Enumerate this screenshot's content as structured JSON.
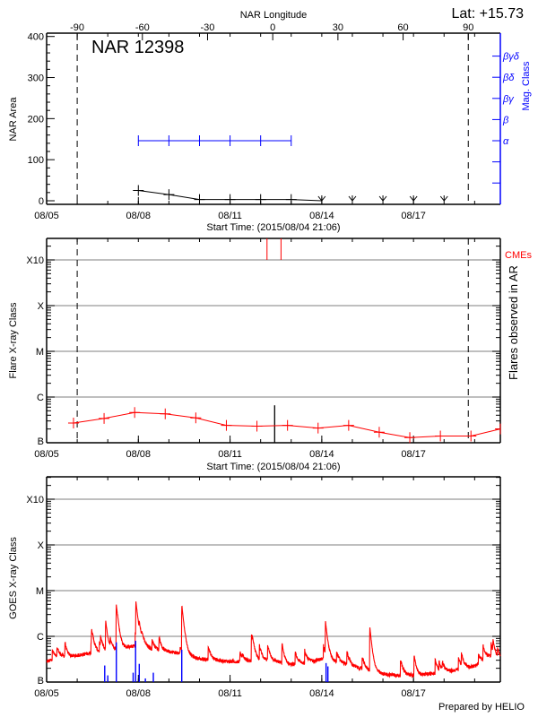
{
  "footer": {
    "credit": "Prepared by HELIO"
  },
  "chart_data": [
    {
      "type": "line",
      "title": "NAR 12398",
      "top_right_label": "Lat: +15.73",
      "xlabel": "Start Time: (2015/08/04 21:06)",
      "xlim": [
        "08/05 00:00",
        "08/19 20:10"
      ],
      "xticks": [
        "08/05",
        "08/08",
        "08/11",
        "08/14",
        "08/17"
      ],
      "top_axis": {
        "label": "NAR Longitude",
        "ticks": [
          -90,
          -60,
          -30,
          0,
          30,
          60,
          90
        ],
        "dates_at_limb": {
          "-90": "08/06 00:00",
          "90": "08/18 19:00"
        }
      },
      "ylabel": "NAR Area",
      "ylim": [
        -8,
        410
      ],
      "yticks": [
        0,
        100,
        200,
        300,
        400
      ],
      "right_axis": {
        "label": "Mag. Class",
        "ticks": [
          "α",
          "β",
          "βγ",
          "βδ",
          "βγδ"
        ],
        "color": "#0000ff"
      },
      "limb_lines": [
        "08/06 00:00",
        "08/18 19:00"
      ],
      "series": [
        {
          "kind": "area",
          "color": "#000000",
          "x": [
            "08/08 00:00",
            "08/09 00:00",
            "08/10 00:00",
            "08/11 00:00",
            "08/12 00:00",
            "08/13 00:00"
          ],
          "values": [
            25,
            15,
            3,
            3,
            3,
            3
          ]
        },
        {
          "kind": "area-zero-markers",
          "color": "#000000",
          "x": [
            "08/14 00:00",
            "08/15 00:00",
            "08/16 00:00",
            "08/17 00:00",
            "08/18 00:00"
          ],
          "values": [
            0,
            0,
            0,
            0,
            0
          ]
        },
        {
          "kind": "mag-class",
          "color": "#0000ff",
          "x": [
            "08/08 00:00",
            "08/09 00:00",
            "08/10 00:00",
            "08/11 00:00",
            "08/12 00:00",
            "08/13 00:00"
          ],
          "values": [
            "α",
            "α",
            "α",
            "α",
            "α",
            "α"
          ]
        }
      ]
    },
    {
      "type": "line",
      "xlabel": "Start Time: (2015/08/04 21:06)",
      "xlim": [
        "08/05 00:00",
        "08/19 20:10"
      ],
      "xticks": [
        "08/05",
        "08/08",
        "08/11",
        "08/14",
        "08/17"
      ],
      "ylabel": "Flare X-ray Class",
      "right_label": "Flares observed in AR",
      "yscale": "log",
      "yticks": [
        "B",
        "C",
        "M",
        "X",
        "X10"
      ],
      "grid": true,
      "limb_lines": [
        "08/06 00:00",
        "08/18 19:00"
      ],
      "cme_label": "CMEs",
      "cmes": [
        "08/12 05:00",
        "08/12 16:00"
      ],
      "flares": [
        {
          "x": "08/12 11:00",
          "class": "B6.6"
        }
      ],
      "series": [
        {
          "kind": "background",
          "color": "#ff0000",
          "x": [
            "08/05 21:06",
            "08/06 21:06",
            "08/07 21:06",
            "08/08 21:06",
            "08/09 21:06",
            "08/10 21:06",
            "08/11 21:06",
            "08/12 21:06",
            "08/13 21:06",
            "08/14 21:06",
            "08/15 21:06",
            "08/16 21:06",
            "08/17 21:06",
            "08/18 21:06",
            "08/19 21:06"
          ],
          "values": [
            "B2.7",
            "B3.4",
            "B4.6",
            "B4.3",
            "B3.5",
            "B2.4",
            "B2.3",
            "B2.4",
            "B2.1",
            "B2.4",
            "B1.7",
            "B1.3",
            "B1.4",
            "B1.4",
            "B2.0"
          ]
        }
      ]
    },
    {
      "type": "line",
      "xlim": [
        "08/05 00:00",
        "08/19 20:10"
      ],
      "xticks": [
        "08/05",
        "08/08",
        "08/11",
        "08/14",
        "08/17"
      ],
      "ylabel": "GOES X-ray Class",
      "yscale": "log",
      "yticks": [
        "B",
        "C",
        "M",
        "X",
        "X10"
      ],
      "grid": true,
      "series": [
        {
          "kind": "goes-background",
          "color": "#ff0000",
          "x": [
            "08/05 00:00",
            "08/05 12:00",
            "08/06 00:00",
            "08/06 12:00",
            "08/07 00:00",
            "08/07 12:00",
            "08/08 00:00",
            "08/08 12:00",
            "08/09 00:00",
            "08/09 12:00",
            "08/10 00:00",
            "08/10 12:00",
            "08/11 00:00",
            "08/11 12:00",
            "08/12 00:00",
            "08/12 12:00",
            "08/13 00:00",
            "08/13 12:00",
            "08/14 00:00",
            "08/14 12:00",
            "08/15 00:00",
            "08/15 12:00",
            "08/16 00:00",
            "08/16 12:00",
            "08/17 00:00",
            "08/17 12:00",
            "08/18 00:00",
            "08/18 12:00",
            "08/19 00:00",
            "08/19 12:00",
            "08/19 22:00"
          ],
          "values": [
            "B2.8",
            "B3.5",
            "B3.8",
            "B4.4",
            "B4.4",
            "B5.5",
            "B6.4",
            "B5.1",
            "B4.7",
            "B4.0",
            "B3.2",
            "B3.0",
            "B2.8",
            "B2.8",
            "B3.0",
            "B2.8",
            "B2.4",
            "B2.6",
            "B3.2",
            "B2.8",
            "B2.2",
            "B1.8",
            "B1.5",
            "B1.4",
            "B1.4",
            "B1.5",
            "B1.6",
            "B1.9",
            "B2.2",
            "B3.5",
            "B3.0"
          ]
        },
        {
          "kind": "goes-peaks",
          "color": "#ff0000",
          "x": [
            "08/05 14:24",
            "08/06 11:17",
            "08/06 22:19",
            "08/07 06:43",
            "08/07 22:05",
            "08/08 16:19",
            "08/09 10:05",
            "08/11 16:48",
            "08/12 16:48",
            "08/14 02:53",
            "08/15 13:41",
            "08/17 00:29",
            "08/19 14:24"
          ],
          "values": [
            "B7.4",
            "C1.0",
            "C2.2",
            "C4.9",
            "C5.5",
            "C1.0",
            "C4.5",
            "C1.1",
            "B7.2",
            "C2.0",
            "C1.6",
            "B4.0",
            "B6.9"
          ]
        },
        {
          "kind": "events",
          "color": "#0000ff",
          "x": [
            "08/06 21:36",
            "08/07 00:00",
            "08/07 06:43",
            "08/07 19:55",
            "08/07 21:50",
            "08/08 00:43",
            "08/08 05:31",
            "08/08 11:46",
            "08/09 10:05",
            "08/14 03:22",
            "08/14 04:48"
          ],
          "values": [
            "B2.3",
            "B1.4",
            "B7.4",
            "B1.6",
            "B8.0",
            "B2.5",
            "B1.2",
            "B1.6",
            "B5.1",
            "B2.6",
            "B2.2"
          ]
        }
      ]
    }
  ]
}
